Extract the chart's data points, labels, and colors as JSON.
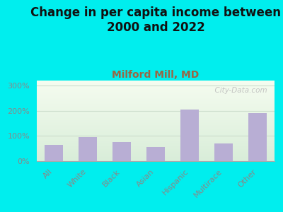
{
  "title": "Change in per capita income between\n2000 and 2022",
  "subtitle": "Milford Mill, MD",
  "categories": [
    "All",
    "White",
    "Black",
    "Asian",
    "Hispanic",
    "Multirace",
    "Other"
  ],
  "values": [
    65,
    95,
    75,
    55,
    205,
    70,
    190
  ],
  "bar_color": "#b8aed4",
  "background_color": "#00EEEE",
  "ylabel_ticks": [
    0,
    100,
    200,
    300
  ],
  "ylabel_labels": [
    "0%",
    "100%",
    "200%",
    "300%"
  ],
  "ylim": [
    0,
    320
  ],
  "title_fontsize": 12,
  "subtitle_fontsize": 10,
  "subtitle_color": "#996644",
  "tick_label_color": "#888888",
  "tick_label_fontsize": 8,
  "watermark": "  City-Data.com",
  "grid_color": "#ccddcc"
}
